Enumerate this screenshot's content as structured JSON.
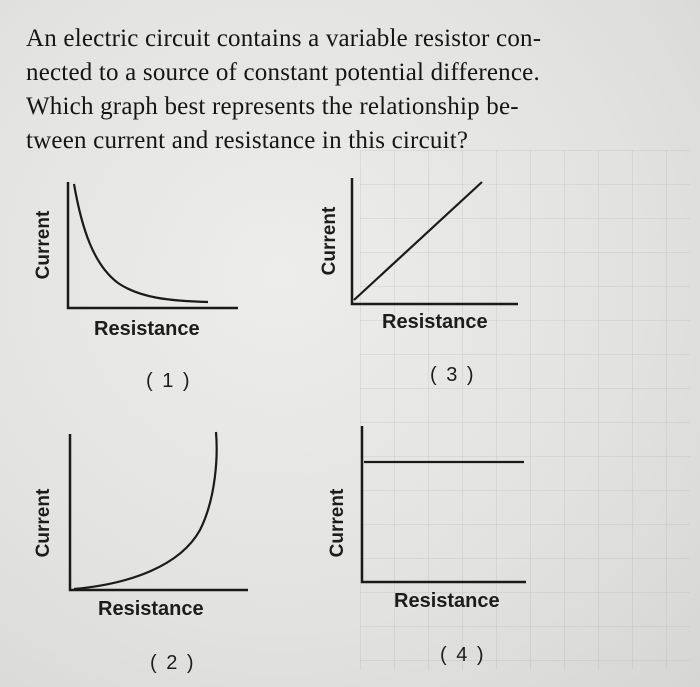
{
  "question": {
    "lines": [
      "An electric circuit contains a variable resistor con-",
      "nected to a source of constant potential difference.",
      "Which graph best represents the relationship be-",
      "tween current and resistance in this circuit?"
    ]
  },
  "options": [
    {
      "number": "( 1 )",
      "ylabel": "Current",
      "xlabel": "Resistance",
      "curve": "decreasing-hyperbola"
    },
    {
      "number": "( 2 )",
      "ylabel": "Current",
      "xlabel": "Resistance",
      "curve": "increasing-exponential"
    },
    {
      "number": "( 3 )",
      "ylabel": "Current",
      "xlabel": "Resistance",
      "curve": "increasing-linear"
    },
    {
      "number": "( 4 )",
      "ylabel": "Current",
      "xlabel": "Resistance",
      "curve": "constant"
    }
  ]
}
